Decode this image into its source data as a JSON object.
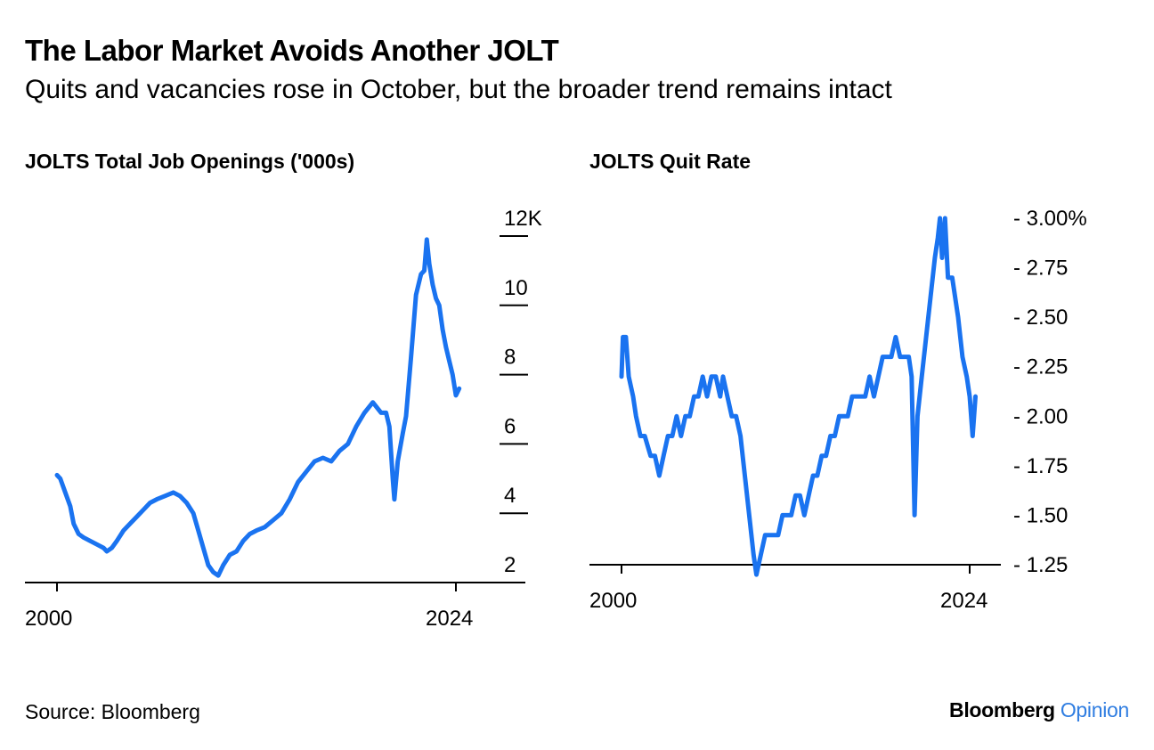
{
  "header": {
    "title": "The Labor Market Avoids Another JOLT",
    "subtitle": "Quits and vacancies rose in October, but the broader trend remains intact"
  },
  "footer": {
    "source": "Source: Bloomberg",
    "brand_bold": "Bloomberg",
    "brand_accent": "Opinion"
  },
  "colors": {
    "line": "#1a73f0",
    "brand_accent": "#2f7de1",
    "axis": "#000000"
  },
  "chart_data": [
    {
      "type": "line",
      "title": "JOLTS Total Job Openings ('000s)",
      "xlabel": "",
      "ylabel": "",
      "x_ticks": [
        "2000",
        "2024"
      ],
      "y_ticks": [
        "12K",
        "10",
        "8",
        "6",
        "4",
        "2"
      ],
      "y_tick_values": [
        12,
        10,
        8,
        6,
        4,
        2
      ],
      "xlim": [
        2000,
        2024
      ],
      "ylim": [
        2,
        12
      ],
      "grid": false,
      "series": [
        {
          "points": [
            [
              2000.0,
              5.1
            ],
            [
              2000.2,
              5.0
            ],
            [
              2000.5,
              4.6
            ],
            [
              2000.8,
              4.2
            ],
            [
              2001.0,
              3.7
            ],
            [
              2001.3,
              3.4
            ],
            [
              2001.6,
              3.3
            ],
            [
              2002.0,
              3.2
            ],
            [
              2002.4,
              3.1
            ],
            [
              2002.8,
              3.0
            ],
            [
              2003.0,
              2.9
            ],
            [
              2003.3,
              3.0
            ],
            [
              2003.6,
              3.2
            ],
            [
              2004.0,
              3.5
            ],
            [
              2004.4,
              3.7
            ],
            [
              2004.8,
              3.9
            ],
            [
              2005.2,
              4.1
            ],
            [
              2005.6,
              4.3
            ],
            [
              2006.0,
              4.4
            ],
            [
              2006.5,
              4.5
            ],
            [
              2007.0,
              4.6
            ],
            [
              2007.4,
              4.5
            ],
            [
              2007.8,
              4.3
            ],
            [
              2008.2,
              4.0
            ],
            [
              2008.5,
              3.5
            ],
            [
              2008.8,
              3.0
            ],
            [
              2009.1,
              2.5
            ],
            [
              2009.4,
              2.3
            ],
            [
              2009.7,
              2.2
            ],
            [
              2010.0,
              2.5
            ],
            [
              2010.4,
              2.8
            ],
            [
              2010.8,
              2.9
            ],
            [
              2011.2,
              3.2
            ],
            [
              2011.6,
              3.4
            ],
            [
              2012.0,
              3.5
            ],
            [
              2012.5,
              3.6
            ],
            [
              2013.0,
              3.8
            ],
            [
              2013.5,
              4.0
            ],
            [
              2014.0,
              4.4
            ],
            [
              2014.5,
              4.9
            ],
            [
              2015.0,
              5.2
            ],
            [
              2015.5,
              5.5
            ],
            [
              2016.0,
              5.6
            ],
            [
              2016.5,
              5.5
            ],
            [
              2017.0,
              5.8
            ],
            [
              2017.5,
              6.0
            ],
            [
              2018.0,
              6.5
            ],
            [
              2018.5,
              6.9
            ],
            [
              2019.0,
              7.2
            ],
            [
              2019.5,
              6.9
            ],
            [
              2019.8,
              6.9
            ],
            [
              2020.0,
              6.5
            ],
            [
              2020.2,
              5.0
            ],
            [
              2020.3,
              4.4
            ],
            [
              2020.5,
              5.5
            ],
            [
              2020.8,
              6.3
            ],
            [
              2021.0,
              6.8
            ],
            [
              2021.3,
              8.5
            ],
            [
              2021.6,
              10.3
            ],
            [
              2021.9,
              10.9
            ],
            [
              2022.1,
              11.0
            ],
            [
              2022.25,
              11.9
            ],
            [
              2022.4,
              11.2
            ],
            [
              2022.6,
              10.6
            ],
            [
              2022.8,
              10.2
            ],
            [
              2023.0,
              10.0
            ],
            [
              2023.2,
              9.3
            ],
            [
              2023.4,
              8.8
            ],
            [
              2023.6,
              8.4
            ],
            [
              2023.8,
              8.0
            ],
            [
              2024.0,
              7.4
            ],
            [
              2024.2,
              7.6
            ]
          ]
        }
      ]
    },
    {
      "type": "line",
      "title": "JOLTS Quit Rate",
      "xlabel": "",
      "ylabel": "",
      "x_ticks": [
        "2000",
        "2024"
      ],
      "y_ticks": [
        "3.00%",
        "2.75",
        "2.50",
        "2.25",
        "2.00",
        "1.75",
        "1.50",
        "1.25"
      ],
      "y_tick_values": [
        3.0,
        2.75,
        2.5,
        2.25,
        2.0,
        1.75,
        1.5,
        1.25
      ],
      "xlim": [
        2000,
        2024
      ],
      "ylim": [
        1.25,
        3.0
      ],
      "grid": false,
      "series": [
        {
          "points": [
            [
              2000.0,
              2.2
            ],
            [
              2000.1,
              2.4
            ],
            [
              2000.3,
              2.4
            ],
            [
              2000.5,
              2.2
            ],
            [
              2000.8,
              2.1
            ],
            [
              2001.0,
              2.0
            ],
            [
              2001.3,
              1.9
            ],
            [
              2001.6,
              1.9
            ],
            [
              2002.0,
              1.8
            ],
            [
              2002.3,
              1.8
            ],
            [
              2002.6,
              1.7
            ],
            [
              2002.9,
              1.8
            ],
            [
              2003.2,
              1.9
            ],
            [
              2003.5,
              1.9
            ],
            [
              2003.8,
              2.0
            ],
            [
              2004.1,
              1.9
            ],
            [
              2004.4,
              2.0
            ],
            [
              2004.7,
              2.0
            ],
            [
              2005.0,
              2.1
            ],
            [
              2005.3,
              2.1
            ],
            [
              2005.6,
              2.2
            ],
            [
              2005.9,
              2.1
            ],
            [
              2006.2,
              2.2
            ],
            [
              2006.5,
              2.2
            ],
            [
              2006.8,
              2.1
            ],
            [
              2007.0,
              2.2
            ],
            [
              2007.3,
              2.1
            ],
            [
              2007.6,
              2.0
            ],
            [
              2007.9,
              2.0
            ],
            [
              2008.2,
              1.9
            ],
            [
              2008.5,
              1.7
            ],
            [
              2008.8,
              1.5
            ],
            [
              2009.1,
              1.3
            ],
            [
              2009.3,
              1.2
            ],
            [
              2009.6,
              1.3
            ],
            [
              2009.9,
              1.4
            ],
            [
              2010.2,
              1.4
            ],
            [
              2010.5,
              1.4
            ],
            [
              2010.8,
              1.4
            ],
            [
              2011.1,
              1.5
            ],
            [
              2011.4,
              1.5
            ],
            [
              2011.7,
              1.5
            ],
            [
              2012.0,
              1.6
            ],
            [
              2012.3,
              1.6
            ],
            [
              2012.6,
              1.5
            ],
            [
              2012.9,
              1.6
            ],
            [
              2013.2,
              1.7
            ],
            [
              2013.5,
              1.7
            ],
            [
              2013.8,
              1.8
            ],
            [
              2014.1,
              1.8
            ],
            [
              2014.4,
              1.9
            ],
            [
              2014.7,
              1.9
            ],
            [
              2015.0,
              2.0
            ],
            [
              2015.3,
              2.0
            ],
            [
              2015.6,
              2.0
            ],
            [
              2015.9,
              2.1
            ],
            [
              2016.2,
              2.1
            ],
            [
              2016.5,
              2.1
            ],
            [
              2016.8,
              2.1
            ],
            [
              2017.1,
              2.2
            ],
            [
              2017.4,
              2.1
            ],
            [
              2017.7,
              2.2
            ],
            [
              2018.0,
              2.3
            ],
            [
              2018.3,
              2.3
            ],
            [
              2018.6,
              2.3
            ],
            [
              2018.9,
              2.4
            ],
            [
              2019.2,
              2.3
            ],
            [
              2019.5,
              2.3
            ],
            [
              2019.8,
              2.3
            ],
            [
              2020.0,
              2.2
            ],
            [
              2020.2,
              1.5
            ],
            [
              2020.4,
              2.0
            ],
            [
              2020.7,
              2.2
            ],
            [
              2021.0,
              2.4
            ],
            [
              2021.3,
              2.6
            ],
            [
              2021.6,
              2.8
            ],
            [
              2021.8,
              2.9
            ],
            [
              2021.95,
              3.0
            ],
            [
              2022.1,
              2.8
            ],
            [
              2022.3,
              3.0
            ],
            [
              2022.5,
              2.7
            ],
            [
              2022.8,
              2.7
            ],
            [
              2023.0,
              2.6
            ],
            [
              2023.2,
              2.5
            ],
            [
              2023.5,
              2.3
            ],
            [
              2023.8,
              2.2
            ],
            [
              2024.0,
              2.1
            ],
            [
              2024.2,
              1.9
            ],
            [
              2024.4,
              2.1
            ]
          ]
        }
      ]
    }
  ]
}
